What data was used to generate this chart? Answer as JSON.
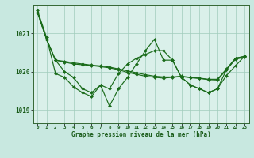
{
  "xlabel": "Graphe pression niveau de la mer (hPa)",
  "background_color": "#c8e8e0",
  "plot_bg_color": "#daf0ea",
  "grid_color": "#a0ccbb",
  "line_color": "#1a6b1a",
  "marker_color": "#1a6b1a",
  "x_values": [
    0,
    1,
    2,
    3,
    4,
    5,
    6,
    7,
    8,
    9,
    10,
    11,
    12,
    13,
    14,
    15,
    16,
    17,
    18,
    19,
    20,
    21,
    22,
    23
  ],
  "s1": [
    1021.6,
    1020.9,
    1019.95,
    1019.85,
    1019.6,
    1019.45,
    1019.35,
    1019.65,
    1019.1,
    1019.55,
    1019.85,
    1020.2,
    1020.55,
    1020.85,
    1020.3,
    1020.3,
    1019.85,
    1019.65,
    1019.55,
    1019.45,
    1019.55,
    1019.9,
    1020.15,
    1020.4
  ],
  "s2": [
    1021.55,
    1020.85,
    1020.3,
    1020.25,
    1020.2,
    1020.18,
    1020.16,
    1020.13,
    1020.1,
    1020.05,
    1019.98,
    1019.93,
    1019.88,
    1019.85,
    1019.83,
    1019.85,
    1019.87,
    1019.84,
    1019.82,
    1019.79,
    1019.78,
    1020.05,
    1020.32,
    1020.38
  ],
  "s3": [
    1021.55,
    1020.85,
    1020.3,
    1020.27,
    1020.23,
    1020.2,
    1020.17,
    1020.15,
    1020.12,
    1020.07,
    1020.02,
    1019.97,
    1019.92,
    1019.88,
    1019.86,
    1019.86,
    1019.88,
    1019.85,
    1019.83,
    1019.8,
    1019.8,
    1020.07,
    1020.35,
    1020.4
  ],
  "s4": [
    1021.55,
    1020.85,
    1020.3,
    1020.0,
    1019.85,
    1019.55,
    1019.45,
    1019.65,
    1019.55,
    1019.95,
    1020.2,
    1020.35,
    1020.45,
    1020.55,
    1020.55,
    1020.3,
    1019.85,
    1019.65,
    1019.55,
    1019.45,
    1019.55,
    1020.05,
    1020.35,
    1020.4
  ],
  "ylim": [
    1018.65,
    1021.75
  ],
  "yticks": [
    1019,
    1020,
    1021
  ],
  "xlim": [
    -0.5,
    23.5
  ]
}
